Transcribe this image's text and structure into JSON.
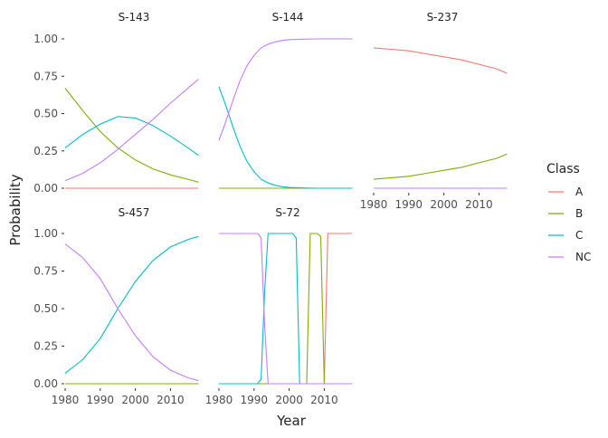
{
  "chart_data": {
    "type": "line",
    "xlabel": "Year",
    "ylabel": "Probability",
    "xlim": [
      1980,
      2018
    ],
    "ylim": [
      0,
      1
    ],
    "x_ticks": [
      1980,
      1990,
      2000,
      2010
    ],
    "y_ticks": [
      0.0,
      0.25,
      0.5,
      0.75,
      1.0
    ],
    "y_tick_labels": [
      "0.00",
      "0.25",
      "0.50",
      "0.75",
      "1.00"
    ],
    "grid": false,
    "legend": {
      "title": "Class",
      "placement": "right",
      "entries": [
        {
          "name": "A",
          "color": "#F8766D"
        },
        {
          "name": "B",
          "color": "#7CAE00"
        },
        {
          "name": "C",
          "color": "#00BFC4"
        },
        {
          "name": "NC",
          "color": "#C77CFF"
        }
      ]
    },
    "panels": [
      {
        "title": "S-143",
        "x": [
          1980,
          1985,
          1990,
          1995,
          2000,
          2005,
          2010,
          2015,
          2018
        ],
        "series": [
          {
            "name": "A",
            "values": [
              0.0,
              0.0,
              0.0,
              0.0,
              0.0,
              0.0,
              0.0,
              0.0,
              0.0
            ]
          },
          {
            "name": "B",
            "values": [
              0.67,
              0.52,
              0.38,
              0.27,
              0.19,
              0.13,
              0.09,
              0.06,
              0.04
            ]
          },
          {
            "name": "C",
            "values": [
              0.27,
              0.36,
              0.43,
              0.48,
              0.47,
              0.42,
              0.35,
              0.27,
              0.22
            ]
          },
          {
            "name": "NC",
            "values": [
              0.05,
              0.1,
              0.17,
              0.26,
              0.36,
              0.46,
              0.57,
              0.67,
              0.73
            ]
          }
        ]
      },
      {
        "title": "S-144",
        "x": [
          1980,
          1982,
          1984,
          1986,
          1988,
          1990,
          1992,
          1994,
          1996,
          1998,
          2000,
          2004,
          2008,
          2012,
          2018
        ],
        "series": [
          {
            "name": "A",
            "values": [
              0.0,
              0.0,
              0.0,
              0.0,
              0.0,
              0.0,
              0.0,
              0.0,
              0.0,
              0.0,
              0.0,
              0.0,
              0.0,
              0.0,
              0.0
            ]
          },
          {
            "name": "B",
            "values": [
              0.0,
              0.0,
              0.0,
              0.0,
              0.0,
              0.0,
              0.0,
              0.0,
              0.0,
              0.0,
              0.0,
              0.0,
              0.0,
              0.0,
              0.0
            ]
          },
          {
            "name": "C",
            "values": [
              0.68,
              0.55,
              0.41,
              0.28,
              0.18,
              0.11,
              0.06,
              0.035,
              0.02,
              0.01,
              0.005,
              0.002,
              0.0,
              0.0,
              0.0
            ]
          },
          {
            "name": "NC",
            "values": [
              0.32,
              0.45,
              0.59,
              0.72,
              0.82,
              0.89,
              0.94,
              0.965,
              0.98,
              0.99,
              0.995,
              0.998,
              1.0,
              1.0,
              1.0
            ]
          }
        ]
      },
      {
        "title": "S-237",
        "x": [
          1980,
          1985,
          1990,
          1995,
          2000,
          2005,
          2010,
          2015,
          2018
        ],
        "series": [
          {
            "name": "A",
            "values": [
              0.94,
              0.93,
              0.92,
              0.9,
              0.88,
              0.86,
              0.83,
              0.8,
              0.77
            ]
          },
          {
            "name": "B",
            "values": [
              0.06,
              0.07,
              0.08,
              0.1,
              0.12,
              0.14,
              0.17,
              0.2,
              0.23
            ]
          },
          {
            "name": "C",
            "values": [
              0.0,
              0.0,
              0.0,
              0.0,
              0.0,
              0.0,
              0.0,
              0.0,
              0.0
            ]
          },
          {
            "name": "NC",
            "values": [
              0.0,
              0.0,
              0.0,
              0.0,
              0.0,
              0.0,
              0.0,
              0.0,
              0.0
            ]
          }
        ]
      },
      {
        "title": "S-457",
        "x": [
          1980,
          1985,
          1990,
          1995,
          2000,
          2005,
          2010,
          2015,
          2018
        ],
        "series": [
          {
            "name": "A",
            "values": [
              0.0,
              0.0,
              0.0,
              0.0,
              0.0,
              0.0,
              0.0,
              0.0,
              0.0
            ]
          },
          {
            "name": "B",
            "values": [
              0.0,
              0.0,
              0.0,
              0.0,
              0.0,
              0.0,
              0.0,
              0.0,
              0.0
            ]
          },
          {
            "name": "C",
            "values": [
              0.07,
              0.16,
              0.3,
              0.5,
              0.68,
              0.82,
              0.91,
              0.96,
              0.98
            ]
          },
          {
            "name": "NC",
            "values": [
              0.93,
              0.84,
              0.7,
              0.5,
              0.32,
              0.18,
              0.09,
              0.04,
              0.02
            ]
          }
        ]
      },
      {
        "title": "S-72",
        "x": [
          1980,
          1991,
          1992,
          1993,
          1994,
          1995,
          1996,
          2001,
          2002,
          2003,
          2004,
          2005,
          2006,
          2008,
          2009,
          2010,
          2011,
          2018
        ],
        "series": [
          {
            "name": "A",
            "values": [
              0.0,
              0.0,
              0.0,
              0.0,
              0.0,
              0.0,
              0.0,
              0.0,
              0.0,
              0.0,
              0.0,
              0.0,
              0.0,
              0.0,
              0.0,
              0.0,
              1.0,
              1.0
            ]
          },
          {
            "name": "B",
            "values": [
              0.0,
              0.0,
              0.0,
              0.0,
              0.0,
              0.0,
              0.0,
              0.0,
              0.0,
              0.0,
              0.0,
              0.0,
              1.0,
              1.0,
              0.98,
              0.0,
              0.0,
              0.0
            ]
          },
          {
            "name": "C",
            "values": [
              0.0,
              0.0,
              0.03,
              0.6,
              1.0,
              1.0,
              1.0,
              1.0,
              0.97,
              0.0,
              0.0,
              0.0,
              0.0,
              0.0,
              0.0,
              0.0,
              0.0,
              0.0
            ]
          },
          {
            "name": "NC",
            "values": [
              1.0,
              1.0,
              0.97,
              0.4,
              0.0,
              0.0,
              0.0,
              0.0,
              0.0,
              0.0,
              0.0,
              0.0,
              0.0,
              0.0,
              0.0,
              0.0,
              0.0,
              0.0
            ]
          }
        ]
      }
    ]
  }
}
